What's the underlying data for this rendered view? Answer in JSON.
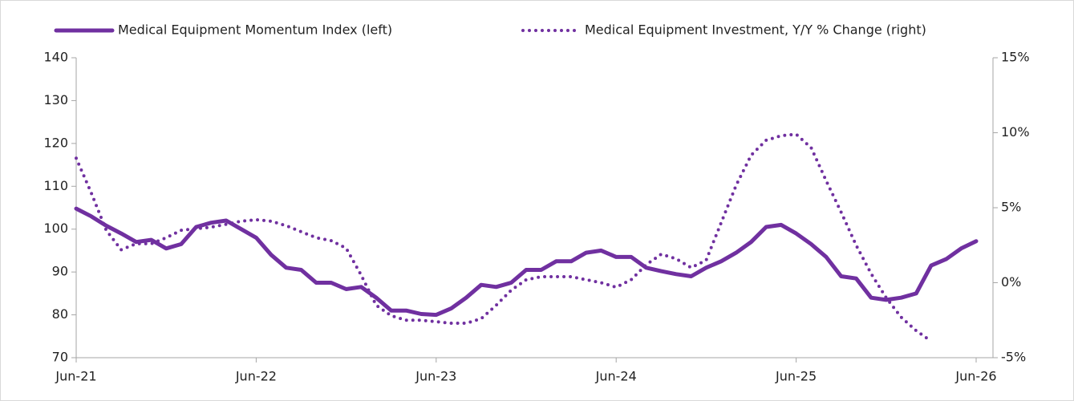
{
  "chart_data": {
    "type": "line",
    "categories": [
      "Jun-21",
      null,
      null,
      null,
      null,
      null,
      null,
      null,
      null,
      null,
      null,
      null,
      "Jun-22",
      null,
      null,
      null,
      null,
      null,
      null,
      null,
      null,
      null,
      null,
      null,
      "Jun-23",
      null,
      null,
      null,
      null,
      null,
      null,
      null,
      null,
      null,
      null,
      null,
      "Jun-24",
      null,
      null,
      null,
      null,
      null,
      null,
      null,
      null,
      null,
      null,
      null,
      "Jun-25",
      null,
      null,
      null,
      null,
      null,
      null,
      null,
      null,
      null,
      null,
      null,
      "Jun-26"
    ],
    "series": [
      {
        "name": "Medical Equipment Momentum Index (left)",
        "color": "#7030a0",
        "style": "solid",
        "values": [
          104.8,
          103,
          100.8,
          99,
          97,
          97.5,
          95.5,
          96.5,
          100.5,
          101.5,
          102,
          100,
          98,
          94,
          91,
          90.5,
          87.5,
          87.5,
          86,
          86.5,
          84,
          81,
          81,
          80.2,
          80,
          81.5,
          84,
          87,
          86.5,
          87.5,
          90.5,
          90.5,
          92.5,
          92.5,
          94.5,
          95,
          93.5,
          93.5,
          91,
          90.2,
          89.5,
          89,
          91,
          92.5,
          94.5,
          97,
          100.5,
          101,
          99,
          96.5,
          93.5,
          89,
          88.5,
          84,
          83.5,
          84,
          85,
          91.5,
          93,
          95.5,
          97.2
        ]
      },
      {
        "name": "Medical Equipment Investment, Y/Y % Change (right)",
        "color": "#7030a0",
        "style": "dotted",
        "axis": "y2",
        "values": [
          8.3,
          6,
          3.5,
          2.2,
          2.6,
          2.6,
          3,
          3.5,
          3.6,
          3.7,
          3.9,
          4.1,
          4.2,
          4.1,
          3.8,
          3.4,
          3,
          2.8,
          2.3,
          0.5,
          -1.5,
          -2.2,
          -2.5,
          -2.5,
          -2.6,
          -2.7,
          -2.7,
          -2.4,
          -1.5,
          -0.5,
          0.2,
          0.4,
          0.4,
          0.4,
          0.2,
          0,
          -0.3,
          0.2,
          1.2,
          1.9,
          1.6,
          1,
          1.5,
          4,
          6.5,
          8.5,
          9.5,
          9.8,
          9.9,
          9,
          6.8,
          4.7,
          2.5,
          0.6,
          -1,
          -2.3,
          -3.2,
          -3.9,
          null,
          null,
          null
        ]
      }
    ],
    "ylim": [
      70,
      140
    ],
    "yticks": [
      70,
      80,
      90,
      100,
      110,
      120,
      130,
      140
    ],
    "y2lim": [
      -5,
      15
    ],
    "y2ticks": [
      {
        "value": -5,
        "label": "-5%"
      },
      {
        "value": 0,
        "label": "0%"
      },
      {
        "value": 5,
        "label": "5%"
      },
      {
        "value": 10,
        "label": "10%"
      },
      {
        "value": 15,
        "label": "15%"
      }
    ],
    "legend": "top",
    "grid": false
  }
}
